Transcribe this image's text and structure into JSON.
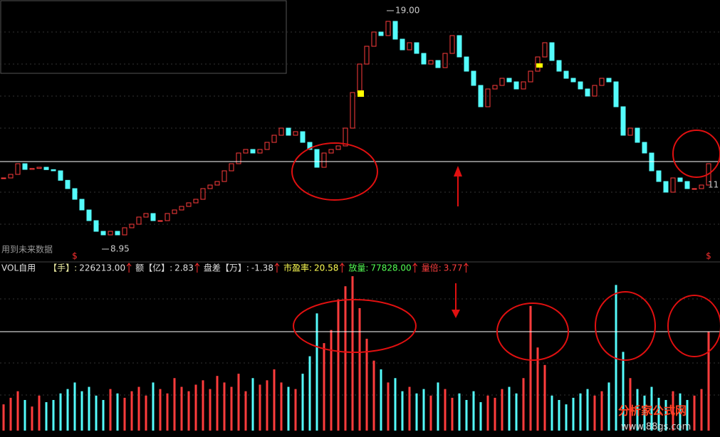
{
  "chart_data": [
    {
      "type": "candlestick",
      "values": [
        11.95,
        12.1,
        12.55,
        12.31,
        12.35,
        12.4,
        12.3,
        12.25,
        11.85,
        11.5,
        11.05,
        10.6,
        10.15,
        9.7,
        9.55,
        9.7,
        9.55,
        9.85,
        10.0,
        10.3,
        10.45,
        10.15,
        10.15,
        10.45,
        10.6,
        10.75,
        10.9,
        11.05,
        11.5,
        11.65,
        11.8,
        12.25,
        12.55,
        13.0,
        13.15,
        13.0,
        13.15,
        13.45,
        13.75,
        14.05,
        13.75,
        13.9,
        13.45,
        13.15,
        12.4,
        13.0,
        13.15,
        13.3,
        14.05,
        15.55,
        16.75,
        17.5,
        18.1,
        17.95,
        18.55,
        17.8,
        17.35,
        17.65,
        17.2,
        16.75,
        16.9,
        16.6,
        17.2,
        17.95,
        17.05,
        16.45,
        15.85,
        14.95,
        15.7,
        15.85,
        16.15,
        16.0,
        15.7,
        16.0,
        16.45,
        17.05,
        17.65,
        16.9,
        16.45,
        16.15,
        16.0,
        15.7,
        15.4,
        15.85,
        16.15,
        16.0,
        14.95,
        13.75,
        14.05,
        13.45,
        13.0,
        12.25,
        11.8,
        11.35,
        11.95,
        11.8,
        11.5,
        11.5,
        11.65,
        12.55
      ],
      "ylim": [
        8.5,
        19.45
      ],
      "high_label": {
        "value": 19,
        "label": "19.00"
      },
      "low_label": 8.95,
      "ref_line": 12.64,
      "edge_label": 11,
      "up_color": "#ff3c3c",
      "down_color": "#54fcfc"
    },
    {
      "type": "bar",
      "values": [
        60000,
        75000,
        90000,
        70000,
        55000,
        80000,
        65000,
        70000,
        85000,
        95000,
        110000,
        90000,
        100000,
        80000,
        70000,
        95000,
        85000,
        75000,
        90000,
        100000,
        80000,
        110000,
        95000,
        85000,
        120000,
        100000,
        90000,
        105000,
        115000,
        95000,
        125000,
        110000,
        100000,
        130000,
        90000,
        120000,
        105000,
        115000,
        140000,
        110000,
        100000,
        95000,
        130000,
        170000,
        268000,
        200000,
        230000,
        300000,
        330000,
        353000,
        280000,
        210000,
        160000,
        140000,
        110000,
        120000,
        90000,
        100000,
        85000,
        95000,
        80000,
        110000,
        95000,
        75000,
        85000,
        70000,
        90000,
        65000,
        80000,
        75000,
        95000,
        100000,
        85000,
        120000,
        285000,
        190000,
        150000,
        80000,
        70000,
        60000,
        75000,
        85000,
        95000,
        80000,
        90000,
        110000,
        333000,
        180000,
        120000,
        95000,
        80000,
        100000,
        75000,
        70000,
        90000,
        85000,
        70000,
        80000,
        95000,
        226213
      ],
      "ylim": [
        0,
        358000
      ],
      "ref_line": 226213,
      "title": "VOL自用",
      "items": [
        {
          "label": "【手】:",
          "value": "226213.00",
          "color": "#e8e8a0",
          "value_color": "#e0e0e0"
        },
        {
          "label": "额【亿】:",
          "value": "2.83",
          "color": "#e0e0e0",
          "value_color": "#e0e0e0"
        },
        {
          "label": "盘差【万】:",
          "value": "-1.38",
          "color": "#e0e0e0",
          "value_color": "#e0e0e0"
        },
        {
          "label": "市盈率:",
          "value": "20.58",
          "color": "#ffff54",
          "value_color": "#ffff54"
        },
        {
          "label": "放量:",
          "value": "77828.00",
          "color": "#54ff54",
          "value_color": "#54ff54"
        },
        {
          "label": "量倍:",
          "value": "3.77",
          "color": "#ff4040",
          "value_color": "#ff4040"
        }
      ]
    }
  ],
  "note": "用到未来数据",
  "signal_symbol": "$",
  "watermark": {
    "title": "分析家公式网",
    "url": "www.88gs.com"
  }
}
